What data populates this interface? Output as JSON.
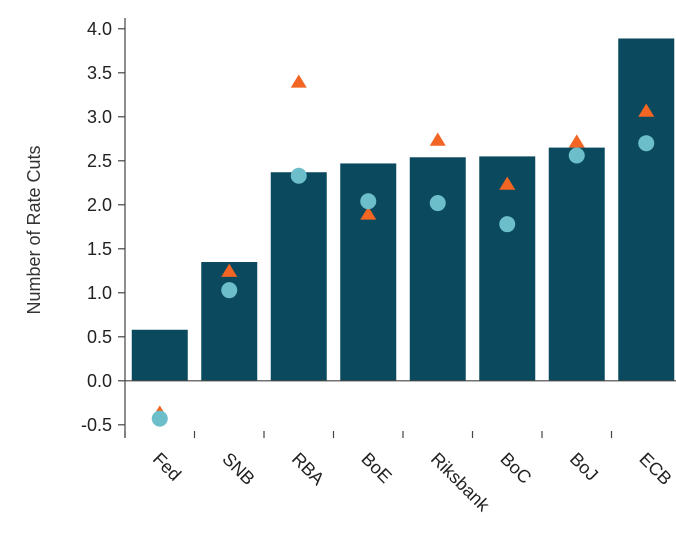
{
  "chart_data": {
    "type": "bar",
    "title": "",
    "xlabel": "",
    "ylabel": "Number of Rate Cuts",
    "ylim": [
      -0.65,
      4.1
    ],
    "yticks": [
      -0.5,
      0.0,
      0.5,
      1.0,
      1.5,
      2.0,
      2.5,
      3.0,
      3.5,
      4.0
    ],
    "ytick_labels": [
      "-0.5",
      "0.0",
      "0.5",
      "1.0",
      "1.5",
      "2.0",
      "2.5",
      "3.0",
      "3.5",
      "4.0"
    ],
    "categories": [
      "Fed",
      "SNB",
      "RBA",
      "BoE",
      "Riksbank",
      "BoC",
      "BoJ",
      "ECB"
    ],
    "grid": false,
    "series": [
      {
        "type": "bar",
        "values": [
          0.58,
          1.35,
          2.37,
          2.47,
          2.54,
          2.55,
          2.65,
          3.89
        ],
        "color": "#0b4a5e"
      },
      {
        "type": "scatter",
        "marker": "triangle",
        "values": [
          -0.37,
          1.24,
          3.39,
          1.89,
          2.73,
          2.23,
          2.71,
          3.06
        ],
        "color": "#f26522"
      },
      {
        "type": "scatter",
        "marker": "circle",
        "values": [
          -0.43,
          1.03,
          2.33,
          2.04,
          2.02,
          1.78,
          2.56,
          2.7
        ],
        "color": "#6cbfca"
      }
    ]
  }
}
